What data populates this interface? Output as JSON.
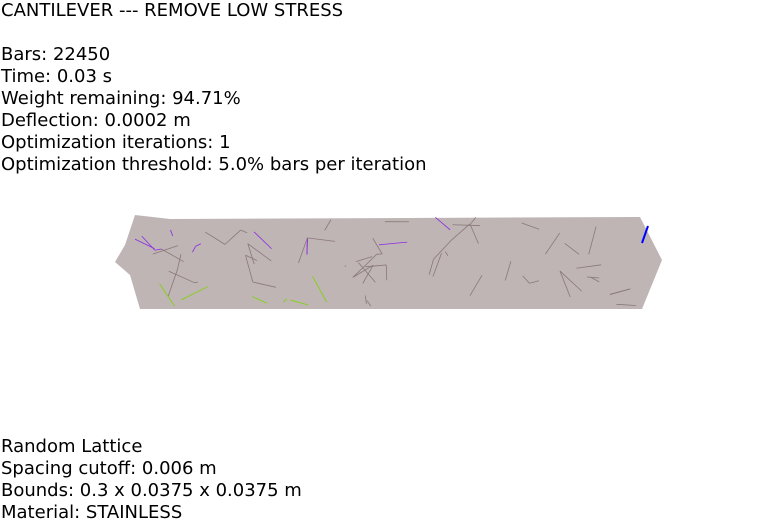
{
  "header": {
    "title": "CANTILEVER --- REMOVE LOW STRESS"
  },
  "stats": {
    "bars": "Bars: 22450",
    "time": "Time: 0.03 s",
    "weight_remaining": "Weight remaining: 94.71%",
    "deflection": "Deflection: 0.0002 m",
    "optimization_iterations": "Optimization iterations: 1",
    "optimization_threshold": "Optimization threshold: 5.0% bars per iteration"
  },
  "lattice_info": {
    "type": "Random Lattice",
    "spacing_cutoff": "Spacing cutoff: 0.006 m",
    "bounds": "Bounds: 0.3 x 0.0375 x 0.0375 m",
    "material": "Material: STAINLESS"
  },
  "render": {
    "beam_color": "#8a7878",
    "compression_color": "#8a2be2",
    "tension_color": "#7cd400",
    "load_indicator_color": "#0000ff"
  }
}
